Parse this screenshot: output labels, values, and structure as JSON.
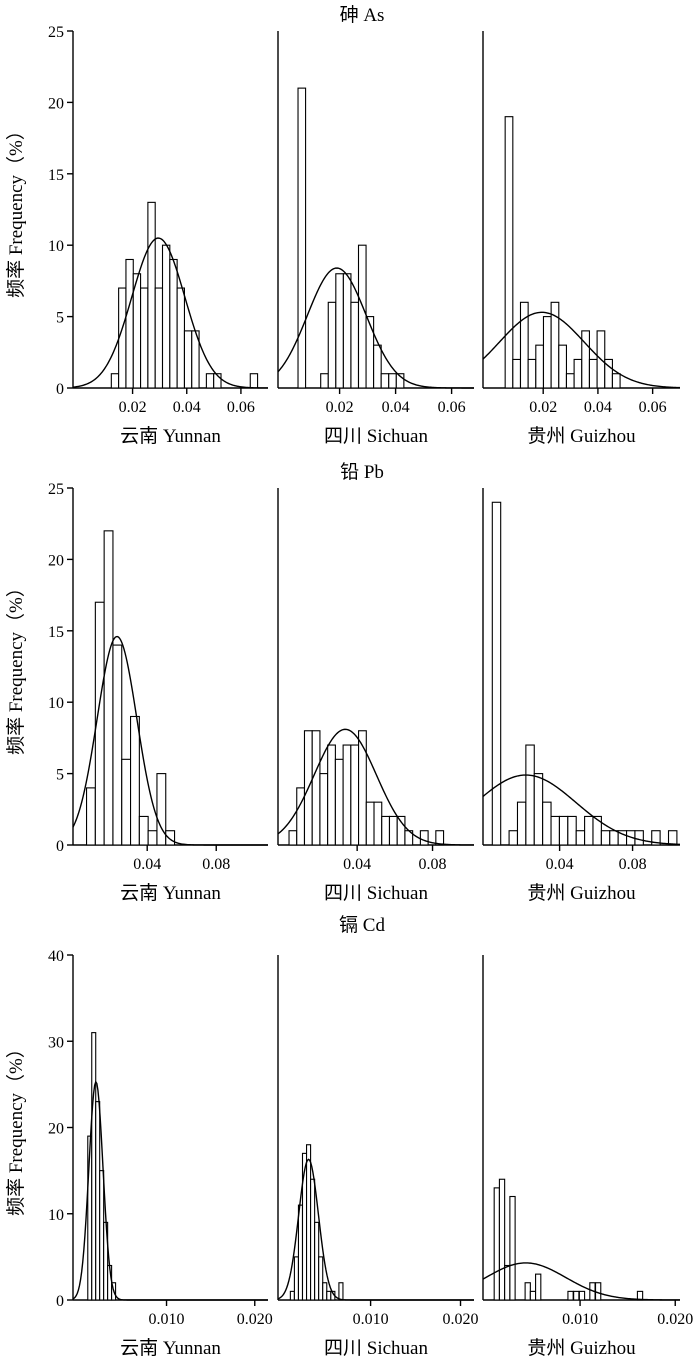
{
  "figure": {
    "y_axis_label": "频率 Frequency（%）"
  },
  "chart_data": [
    {
      "type": "histogram",
      "element": "As",
      "title": "砷 As",
      "ylabel": "频率 Frequency（%）",
      "ylim": [
        0,
        25
      ],
      "yticks": [
        0,
        5,
        10,
        15,
        20,
        25
      ],
      "panels": [
        {
          "region": "云南 Yunnan",
          "xlim": [
            -0.002,
            0.07
          ],
          "xticks": [
            0.02,
            0.04,
            0.06
          ],
          "xtick_labels": [
            "0.02",
            "0.04",
            "0.06"
          ],
          "bin_width": 0.0027,
          "bins": [
            {
              "x": 0.0135,
              "y": 1
            },
            {
              "x": 0.0162,
              "y": 7
            },
            {
              "x": 0.0189,
              "y": 9
            },
            {
              "x": 0.0216,
              "y": 8
            },
            {
              "x": 0.0243,
              "y": 7
            },
            {
              "x": 0.027,
              "y": 13
            },
            {
              "x": 0.0297,
              "y": 7
            },
            {
              "x": 0.0324,
              "y": 10
            },
            {
              "x": 0.0351,
              "y": 9
            },
            {
              "x": 0.0378,
              "y": 7
            },
            {
              "x": 0.0405,
              "y": 4
            },
            {
              "x": 0.0432,
              "y": 4
            },
            {
              "x": 0.0486,
              "y": 1
            },
            {
              "x": 0.0513,
              "y": 1
            },
            {
              "x": 0.0648,
              "y": 1
            }
          ],
          "normal_fit": {
            "mean": 0.0295,
            "sd": 0.0098,
            "peak": 10.5
          }
        },
        {
          "region": "四川 Sichuan",
          "xlim": [
            -0.002,
            0.068
          ],
          "xticks": [
            0.02,
            0.04,
            0.06
          ],
          "xtick_labels": [
            "0.02",
            "0.04",
            "0.06"
          ],
          "bin_width": 0.0027,
          "bins": [
            {
              "x": 0.0065,
              "y": 21
            },
            {
              "x": 0.0146,
              "y": 1
            },
            {
              "x": 0.0173,
              "y": 6
            },
            {
              "x": 0.02,
              "y": 8
            },
            {
              "x": 0.0227,
              "y": 8
            },
            {
              "x": 0.0254,
              "y": 6
            },
            {
              "x": 0.0281,
              "y": 10
            },
            {
              "x": 0.0308,
              "y": 5
            },
            {
              "x": 0.0335,
              "y": 3
            },
            {
              "x": 0.0362,
              "y": 1
            },
            {
              "x": 0.0389,
              "y": 1
            },
            {
              "x": 0.0416,
              "y": 1
            }
          ],
          "normal_fit": {
            "mean": 0.019,
            "sd": 0.0105,
            "peak": 8.4
          }
        },
        {
          "region": "贵州 Guizhou",
          "xlim": [
            -0.002,
            0.07
          ],
          "xticks": [
            0.02,
            0.04,
            0.06
          ],
          "xtick_labels": [
            "0.02",
            "0.04",
            "0.06"
          ],
          "bin_width": 0.0028,
          "bins": [
            {
              "x": 0.0075,
              "y": 19
            },
            {
              "x": 0.0103,
              "y": 2
            },
            {
              "x": 0.0131,
              "y": 6
            },
            {
              "x": 0.0159,
              "y": 2
            },
            {
              "x": 0.0187,
              "y": 3
            },
            {
              "x": 0.0215,
              "y": 5
            },
            {
              "x": 0.0243,
              "y": 6
            },
            {
              "x": 0.0271,
              "y": 3
            },
            {
              "x": 0.0299,
              "y": 1
            },
            {
              "x": 0.0327,
              "y": 2
            },
            {
              "x": 0.0355,
              "y": 4
            },
            {
              "x": 0.0383,
              "y": 2
            },
            {
              "x": 0.0411,
              "y": 4
            },
            {
              "x": 0.0439,
              "y": 2
            },
            {
              "x": 0.0467,
              "y": 1
            }
          ],
          "normal_fit": {
            "mean": 0.0195,
            "sd": 0.0155,
            "peak": 5.3
          }
        }
      ]
    },
    {
      "type": "histogram",
      "element": "Pb",
      "title": "铅 Pb",
      "ylabel": "频率 Frequency（%）",
      "ylim": [
        0,
        25
      ],
      "yticks": [
        0,
        5,
        10,
        15,
        20,
        25
      ],
      "panels": [
        {
          "region": "云南 Yunnan",
          "xlim": [
            -0.003,
            0.11
          ],
          "xticks": [
            0.04,
            0.08
          ],
          "xtick_labels": [
            "0.04",
            "0.08"
          ],
          "bin_width": 0.0051,
          "bins": [
            {
              "x": 0.0074,
              "y": 4
            },
            {
              "x": 0.0125,
              "y": 17
            },
            {
              "x": 0.0176,
              "y": 22
            },
            {
              "x": 0.0227,
              "y": 14
            },
            {
              "x": 0.0278,
              "y": 6
            },
            {
              "x": 0.0329,
              "y": 9
            },
            {
              "x": 0.038,
              "y": 2
            },
            {
              "x": 0.0431,
              "y": 1
            },
            {
              "x": 0.0482,
              "y": 5
            },
            {
              "x": 0.0533,
              "y": 1
            }
          ],
          "normal_fit": {
            "mean": 0.0225,
            "sd": 0.0115,
            "peak": 14.6
          }
        },
        {
          "region": "四川 Sichuan",
          "xlim": [
            -0.002,
            0.102
          ],
          "xticks": [
            0.04,
            0.08
          ],
          "xtick_labels": [
            "0.04",
            "0.08"
          ],
          "bin_width": 0.0041,
          "bins": [
            {
              "x": 0.0059,
              "y": 1
            },
            {
              "x": 0.01,
              "y": 4
            },
            {
              "x": 0.0141,
              "y": 8
            },
            {
              "x": 0.0182,
              "y": 8
            },
            {
              "x": 0.0223,
              "y": 5
            },
            {
              "x": 0.0264,
              "y": 7
            },
            {
              "x": 0.0305,
              "y": 6
            },
            {
              "x": 0.0346,
              "y": 7
            },
            {
              "x": 0.0387,
              "y": 7
            },
            {
              "x": 0.0428,
              "y": 8
            },
            {
              "x": 0.0469,
              "y": 3
            },
            {
              "x": 0.051,
              "y": 3
            },
            {
              "x": 0.0551,
              "y": 2
            },
            {
              "x": 0.0592,
              "y": 2
            },
            {
              "x": 0.0633,
              "y": 2
            },
            {
              "x": 0.0674,
              "y": 1
            },
            {
              "x": 0.0756,
              "y": 1
            },
            {
              "x": 0.0838,
              "y": 1
            }
          ],
          "normal_fit": {
            "mean": 0.0337,
            "sd": 0.0165,
            "peak": 8.1
          }
        },
        {
          "region": "贵州 Guizhou",
          "xlim": [
            -0.002,
            0.106
          ],
          "xticks": [
            0.04,
            0.08
          ],
          "xtick_labels": [
            "0.04",
            "0.08"
          ],
          "bin_width": 0.0046,
          "bins": [
            {
              "x": 0.0054,
              "y": 24
            },
            {
              "x": 0.0146,
              "y": 1
            },
            {
              "x": 0.0192,
              "y": 3
            },
            {
              "x": 0.0238,
              "y": 7
            },
            {
              "x": 0.0284,
              "y": 5
            },
            {
              "x": 0.033,
              "y": 3
            },
            {
              "x": 0.0376,
              "y": 2
            },
            {
              "x": 0.0422,
              "y": 2
            },
            {
              "x": 0.0468,
              "y": 2
            },
            {
              "x": 0.0514,
              "y": 1
            },
            {
              "x": 0.056,
              "y": 2
            },
            {
              "x": 0.0606,
              "y": 2
            },
            {
              "x": 0.0652,
              "y": 1
            },
            {
              "x": 0.0698,
              "y": 1
            },
            {
              "x": 0.0744,
              "y": 1
            },
            {
              "x": 0.079,
              "y": 1
            },
            {
              "x": 0.0836,
              "y": 1
            },
            {
              "x": 0.0928,
              "y": 1
            },
            {
              "x": 0.102,
              "y": 1
            }
          ],
          "normal_fit": {
            "mean": 0.0215,
            "sd": 0.0275,
            "peak": 4.9
          }
        }
      ]
    },
    {
      "type": "histogram",
      "element": "Cd",
      "title": "镉 Cd",
      "ylabel": "频率 Frequency（%）",
      "ylim": [
        0,
        40
      ],
      "yticks": [
        0,
        10,
        20,
        30,
        40
      ],
      "panels": [
        {
          "region": "云南 Yunnan",
          "xlim": [
            -0.0006,
            0.0215
          ],
          "xticks": [
            0.01,
            0.02
          ],
          "xtick_labels": [
            "0.010",
            "0.020"
          ],
          "bin_width": 0.00045,
          "bins": [
            {
              "x": 0.0013,
              "y": 19
            },
            {
              "x": 0.00175,
              "y": 31
            },
            {
              "x": 0.0022,
              "y": 23
            },
            {
              "x": 0.00265,
              "y": 15
            },
            {
              "x": 0.0031,
              "y": 9
            },
            {
              "x": 0.00355,
              "y": 4
            },
            {
              "x": 0.004,
              "y": 2
            }
          ],
          "normal_fit": {
            "mean": 0.002,
            "sd": 0.0008,
            "peak": 25.3
          }
        },
        {
          "region": "四川 Sichuan",
          "xlim": [
            -0.0003,
            0.0215
          ],
          "xticks": [
            0.01,
            0.02
          ],
          "xtick_labels": [
            "0.010",
            "0.020"
          ],
          "bin_width": 0.00045,
          "bins": [
            {
              "x": 0.0013,
              "y": 1
            },
            {
              "x": 0.00175,
              "y": 5
            },
            {
              "x": 0.0022,
              "y": 11
            },
            {
              "x": 0.00265,
              "y": 17
            },
            {
              "x": 0.0031,
              "y": 18
            },
            {
              "x": 0.00355,
              "y": 14
            },
            {
              "x": 0.004,
              "y": 9
            },
            {
              "x": 0.00445,
              "y": 5
            },
            {
              "x": 0.0049,
              "y": 2
            },
            {
              "x": 0.00535,
              "y": 1
            },
            {
              "x": 0.0058,
              "y": 1
            },
            {
              "x": 0.0067,
              "y": 2
            }
          ],
          "normal_fit": {
            "mean": 0.0031,
            "sd": 0.0011,
            "peak": 16.3
          }
        },
        {
          "region": "贵州 Guizhou",
          "xlim": [
            -0.0002,
            0.0205
          ],
          "xticks": [
            0.01,
            0.02
          ],
          "xtick_labels": [
            "0.010",
            "0.020"
          ],
          "bin_width": 0.00055,
          "bins": [
            {
              "x": 0.00125,
              "y": 13
            },
            {
              "x": 0.0018,
              "y": 14
            },
            {
              "x": 0.00235,
              "y": 4
            },
            {
              "x": 0.0029,
              "y": 12
            },
            {
              "x": 0.0045,
              "y": 2
            },
            {
              "x": 0.00505,
              "y": 1
            },
            {
              "x": 0.0056,
              "y": 3
            },
            {
              "x": 0.009,
              "y": 1
            },
            {
              "x": 0.0096,
              "y": 1
            },
            {
              "x": 0.0102,
              "y": 1
            },
            {
              "x": 0.0113,
              "y": 2
            },
            {
              "x": 0.0119,
              "y": 2
            },
            {
              "x": 0.0163,
              "y": 1
            }
          ],
          "normal_fit": {
            "mean": 0.0043,
            "sd": 0.0042,
            "peak": 4.3
          }
        }
      ]
    }
  ]
}
